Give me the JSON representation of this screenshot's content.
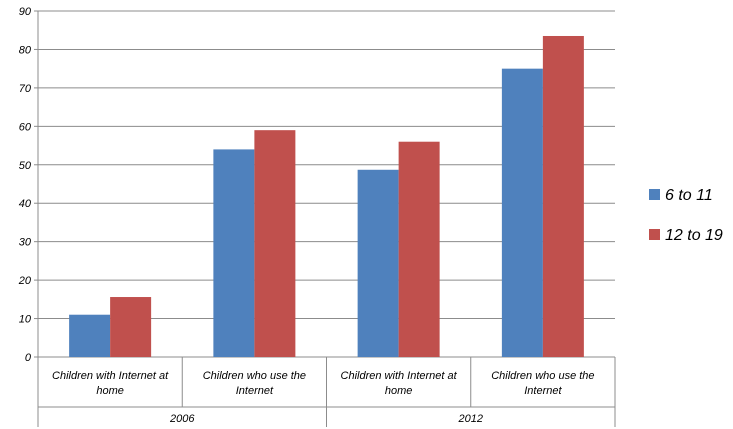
{
  "chart_data": {
    "type": "bar",
    "title": "",
    "xlabel": "",
    "ylabel": "",
    "ylim": [
      0,
      90
    ],
    "yticks": [
      0,
      10,
      20,
      30,
      40,
      50,
      60,
      70,
      80,
      90
    ],
    "grid": true,
    "legend_position": "right",
    "groups": [
      {
        "label": "2006",
        "categories": [
          "Children with Internet at home",
          "Children who use the Internet"
        ]
      },
      {
        "label": "2012",
        "categories": [
          "Children with Internet at home",
          "Children who use the Internet"
        ]
      }
    ],
    "category_label_lines": [
      [
        "Children with Internet at",
        "home"
      ],
      [
        "Children who use the",
        "Internet"
      ],
      [
        "Children with Internet at",
        "home"
      ],
      [
        "Children who use the",
        "Internet"
      ]
    ],
    "series": [
      {
        "name": "6 to 11",
        "color": "#4F81BD",
        "values": [
          11,
          54,
          48.7,
          75
        ]
      },
      {
        "name": "12 to 19",
        "color": "#C0504D",
        "values": [
          15.6,
          59,
          56,
          83.5
        ]
      }
    ]
  }
}
